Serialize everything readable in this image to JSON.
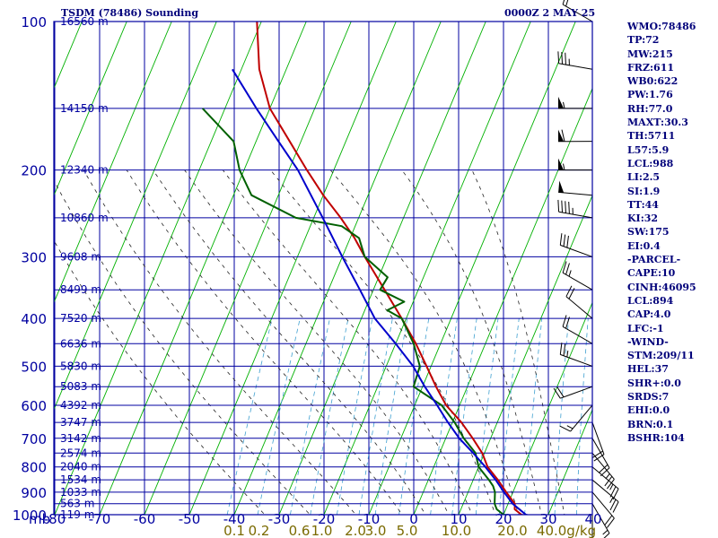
{
  "header": {
    "title": "TSDM (78486) Sounding",
    "time": "0000Z  2 MAY 25"
  },
  "colors": {
    "isobar": "#0000a0",
    "isotherm": "#0000c0",
    "dry_adiabat": "#00b000",
    "moist_adiabat": "#222222",
    "mixing_ratio": "#3fa0d0",
    "temperature": "#c00000",
    "dewpoint": "#006000",
    "parcel": "#0000cc",
    "wind": "#000000",
    "text": "#00007a",
    "mixing_label": "#7a6a00"
  },
  "indices": [
    "WMO:78486",
    "TP:72",
    "MW:215",
    "FRZ:611",
    "WB0:622",
    "PW:1.76",
    "RH:77.0",
    "MAXT:30.3",
    "TH:5711",
    "L57:5.9",
    "LCL:988",
    "LI:2.5",
    "SI:1.9",
    "TT:44",
    "KI:32",
    "SW:175",
    "EI:0.4",
    "-PARCEL-",
    "CAPE:10",
    "CINH:46095",
    "LCL:894",
    "CAP:4.0",
    "LFC:-1",
    "-WIND-",
    "STM:209/11",
    "HEL:37",
    "SHR+:0.0",
    "SRDS:7",
    "EHI:0.0",
    "BRN:0.1",
    "BSHR:104"
  ],
  "chart_data": {
    "type": "line",
    "title": "TSDM (78486) Sounding",
    "x_unit_label": "",
    "y_unit_label": "mb",
    "xlim": [
      -80,
      0
    ],
    "pressure_range": [
      100,
      1000
    ],
    "pressure_ticks": [
      100,
      200,
      300,
      400,
      500,
      600,
      700,
      800,
      900,
      1000
    ],
    "temperature_ticks": [
      -80,
      -70,
      -60,
      -50,
      -40,
      -30,
      -20,
      -10,
      0,
      10,
      20,
      30,
      40
    ],
    "mixing_ratio_labels": [
      {
        "label": "0.1",
        "t": -40
      },
      {
        "label": "0.2",
        "t": -34.5
      },
      {
        "label": "0.6",
        "t": -25.5
      },
      {
        "label": "1.0",
        "t": -20.5
      },
      {
        "label": "2.0",
        "t": -13
      },
      {
        "label": "3.0",
        "t": -8.5
      },
      {
        "label": "5.0",
        "t": -1.5
      },
      {
        "label": "10.0",
        "t": 9.5
      },
      {
        "label": "20.0",
        "t": 22
      },
      {
        "label": "40.0g/kg",
        "t": 34
      }
    ],
    "height_levels": [
      {
        "p": 100,
        "h": "16560 m"
      },
      {
        "p": 150,
        "h": "14150 m"
      },
      {
        "p": 200,
        "h": "12340 m"
      },
      {
        "p": 250,
        "h": "10860 m"
      },
      {
        "p": 300,
        "h": "9608 m"
      },
      {
        "p": 350,
        "h": "8499 m"
      },
      {
        "p": 400,
        "h": "7520 m"
      },
      {
        "p": 450,
        "h": "6636 m"
      },
      {
        "p": 500,
        "h": "5830 m"
      },
      {
        "p": 550,
        "h": "5083 m"
      },
      {
        "p": 600,
        "h": "4392 m"
      },
      {
        "p": 650,
        "h": "3747 m"
      },
      {
        "p": 700,
        "h": "3142 m"
      },
      {
        "p": 750,
        "h": "2574 m"
      },
      {
        "p": 800,
        "h": "2040 m"
      },
      {
        "p": 850,
        "h": "1534 m"
      },
      {
        "p": 900,
        "h": "1033 m"
      },
      {
        "p": 950,
        "h": "563 m"
      },
      {
        "p": 1000,
        "h": "119 m"
      }
    ],
    "series": [
      {
        "name": "temperature",
        "points": [
          [
            1009,
            26
          ],
          [
            1000,
            24
          ],
          [
            975,
            22
          ],
          [
            950,
            21.5
          ],
          [
            925,
            20
          ],
          [
            900,
            18.5
          ],
          [
            875,
            17
          ],
          [
            850,
            15.5
          ],
          [
            800,
            12
          ],
          [
            750,
            9.5
          ],
          [
            700,
            6
          ],
          [
            650,
            2
          ],
          [
            600,
            -3
          ],
          [
            550,
            -7
          ],
          [
            500,
            -11
          ],
          [
            450,
            -15.5
          ],
          [
            400,
            -21
          ],
          [
            350,
            -27.5
          ],
          [
            300,
            -35
          ],
          [
            275,
            -39
          ],
          [
            250,
            -44
          ],
          [
            225,
            -50
          ],
          [
            200,
            -56
          ],
          [
            175,
            -62.5
          ],
          [
            150,
            -70
          ],
          [
            125,
            -76
          ],
          [
            100,
            -81
          ]
        ]
      },
      {
        "name": "dewpoint",
        "points": [
          [
            1009,
            24
          ],
          [
            1000,
            20
          ],
          [
            975,
            18
          ],
          [
            950,
            17
          ],
          [
            925,
            16.5
          ],
          [
            900,
            16
          ],
          [
            875,
            15
          ],
          [
            850,
            13.5
          ],
          [
            800,
            10
          ],
          [
            750,
            8
          ],
          [
            700,
            4
          ],
          [
            650,
            0.5
          ],
          [
            600,
            -4
          ],
          [
            550,
            -12
          ],
          [
            500,
            -12.5
          ],
          [
            450,
            -16
          ],
          [
            400,
            -21
          ],
          [
            385,
            -25
          ],
          [
            370,
            -22
          ],
          [
            350,
            -28.5
          ],
          [
            330,
            -28
          ],
          [
            300,
            -35
          ],
          [
            275,
            -38
          ],
          [
            260,
            -43
          ],
          [
            250,
            -54
          ],
          [
            225,
            -66
          ],
          [
            200,
            -71
          ],
          [
            175,
            -75
          ],
          [
            150,
            -85
          ]
        ]
      },
      {
        "name": "parcel",
        "points": [
          [
            1009,
            27
          ],
          [
            1000,
            25
          ],
          [
            950,
            21
          ],
          [
            900,
            18
          ],
          [
            850,
            15
          ],
          [
            800,
            11.5
          ],
          [
            750,
            7.5
          ],
          [
            700,
            3
          ],
          [
            650,
            -1
          ],
          [
            600,
            -5
          ],
          [
            550,
            -9.5
          ],
          [
            500,
            -14
          ],
          [
            450,
            -20
          ],
          [
            400,
            -27
          ],
          [
            350,
            -33
          ],
          [
            300,
            -40
          ],
          [
            250,
            -48
          ],
          [
            200,
            -58
          ],
          [
            175,
            -65
          ],
          [
            150,
            -73
          ],
          [
            125,
            -82
          ]
        ]
      }
    ],
    "wind_barbs": [
      {
        "p": 100,
        "dir": 300,
        "kt": 20
      },
      {
        "p": 125,
        "dir": 280,
        "kt": 35
      },
      {
        "p": 150,
        "dir": 270,
        "kt": 55
      },
      {
        "p": 175,
        "dir": 270,
        "kt": 60
      },
      {
        "p": 200,
        "dir": 270,
        "kt": 55
      },
      {
        "p": 225,
        "dir": 275,
        "kt": 50
      },
      {
        "p": 250,
        "dir": 280,
        "kt": 45
      },
      {
        "p": 300,
        "dir": 290,
        "kt": 30
      },
      {
        "p": 350,
        "dir": 300,
        "kt": 25
      },
      {
        "p": 400,
        "dir": 310,
        "kt": 20
      },
      {
        "p": 450,
        "dir": 300,
        "kt": 20
      },
      {
        "p": 500,
        "dir": 290,
        "kt": 25
      },
      {
        "p": 550,
        "dir": 250,
        "kt": 20
      },
      {
        "p": 600,
        "dir": 220,
        "kt": 15
      },
      {
        "p": 650,
        "dir": 160,
        "kt": 20
      },
      {
        "p": 700,
        "dir": 150,
        "kt": 20
      },
      {
        "p": 750,
        "dir": 140,
        "kt": 25
      },
      {
        "p": 800,
        "dir": 130,
        "kt": 25
      },
      {
        "p": 850,
        "dir": 130,
        "kt": 25
      },
      {
        "p": 900,
        "dir": 140,
        "kt": 20
      },
      {
        "p": 950,
        "dir": 150,
        "kt": 15
      },
      {
        "p": 1000,
        "dir": 180,
        "kt": 10
      }
    ]
  }
}
